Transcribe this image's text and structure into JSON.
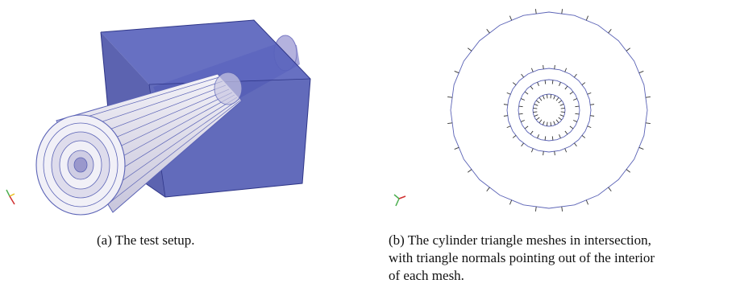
{
  "figure": {
    "subfigure_a": {
      "caption": "(a) The test setup."
    },
    "subfigure_b": {
      "caption_lines": [
        "(b) The cylinder triangle meshes in intersection,",
        "with triangle normals pointing out of the interior",
        "of each mesh."
      ]
    },
    "colors": {
      "box_fill": "#4b55b0",
      "box_face_dark": "#3a4396",
      "cylinder_fill": "#e9e7f2",
      "mesh_line": "#5b63b6",
      "normal_line": "#333333"
    },
    "rings_b": [
      {
        "segments": 24
      },
      {
        "segments": 24
      },
      {
        "segments": 24
      },
      {
        "segments": 24
      }
    ]
  }
}
